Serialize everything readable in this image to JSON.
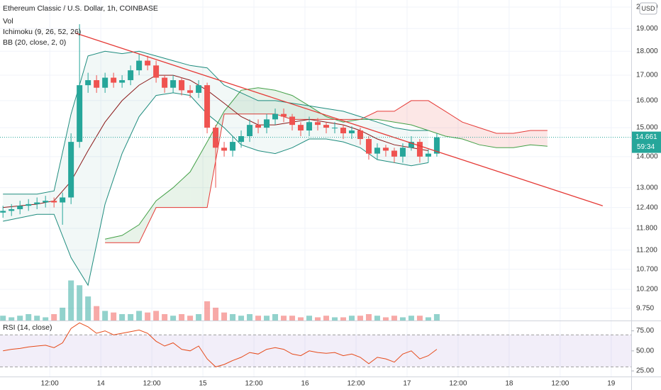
{
  "chart_data": {
    "type": "candlestick",
    "title": "Ethereum Classic / U.S. Dollar, 1h, COINBASE",
    "indicator_labels": [
      "Vol",
      "Ichimoku (9, 26, 52, 26)",
      "BB (20, close, 2, 0)"
    ],
    "currency": "USD",
    "countdown": "59:34",
    "log_scale": true,
    "grid": true,
    "up_color": "#26a69a",
    "down_color": "#ef5350",
    "xlim": [
      0.3,
      148.7
    ],
    "xticks": [
      {
        "value": 12,
        "label": "12:00"
      },
      {
        "value": 24,
        "label": "14"
      },
      {
        "value": 36,
        "label": "12:00"
      },
      {
        "value": 48,
        "label": "15"
      },
      {
        "value": 60,
        "label": "12:00"
      },
      {
        "value": 72,
        "label": "16"
      },
      {
        "value": 84,
        "label": "12:00"
      },
      {
        "value": 96,
        "label": "17"
      },
      {
        "value": 108,
        "label": "12:00"
      },
      {
        "value": 120,
        "label": "18"
      },
      {
        "value": 132,
        "label": "12:00"
      },
      {
        "value": 144,
        "label": "19"
      }
    ],
    "ylim": [
      9.47,
      20.34
    ],
    "yticks": [
      {
        "value": 20,
        "label": "20.000"
      },
      {
        "value": 19,
        "label": "19.000"
      },
      {
        "value": 18,
        "label": "18.000"
      },
      {
        "value": 17,
        "label": "17.000"
      },
      {
        "value": 16,
        "label": "16.000"
      },
      {
        "value": 15,
        "label": "15.000"
      },
      {
        "value": 14,
        "label": "14.000"
      },
      {
        "value": 13,
        "label": "13.000"
      },
      {
        "value": 12.4,
        "label": "12.400"
      },
      {
        "value": 11.8,
        "label": "11.800"
      },
      {
        "value": 11.2,
        "label": "11.200"
      },
      {
        "value": 10.7,
        "label": "10.700"
      },
      {
        "value": 10.2,
        "label": "10.200"
      },
      {
        "value": 9.75,
        "label": "9.750"
      }
    ],
    "x": [
      1,
      3,
      5,
      7,
      9,
      11,
      13,
      15,
      17,
      19,
      21,
      23,
      25,
      27,
      29,
      31,
      33,
      35,
      37,
      39,
      41,
      43,
      45,
      47,
      49,
      51,
      53,
      55,
      57,
      59,
      61,
      63,
      65,
      67,
      69,
      71,
      73,
      75,
      77,
      79,
      81,
      83,
      85,
      87,
      89,
      91,
      93,
      95,
      97,
      99,
      101,
      103
    ],
    "open": [
      12.25,
      12.3,
      12.35,
      12.45,
      12.5,
      12.55,
      12.6,
      12.55,
      12.7,
      14.5,
      16.6,
      16.8,
      16.5,
      16.9,
      16.7,
      16.8,
      17.2,
      17.6,
      17.4,
      16.9,
      16.5,
      16.8,
      16.4,
      16.3,
      16.6,
      15.0,
      14.3,
      14.2,
      14.5,
      14.7,
      15.1,
      15.0,
      15.3,
      15.5,
      15.4,
      15.1,
      14.9,
      15.2,
      15.1,
      15.0,
      15.0,
      14.8,
      14.9,
      14.6,
      14.1,
      14.3,
      14.2,
      14.0,
      14.3,
      14.5,
      14.0,
      14.1
    ],
    "high": [
      12.45,
      12.5,
      12.6,
      12.65,
      12.7,
      12.75,
      12.7,
      12.85,
      14.8,
      19.2,
      17.1,
      17.0,
      17.1,
      17.1,
      17.0,
      17.4,
      17.9,
      17.8,
      17.6,
      17.0,
      17.0,
      16.9,
      16.6,
      16.8,
      16.7,
      15.1,
      14.5,
      14.7,
      14.9,
      15.3,
      15.3,
      15.5,
      15.7,
      15.7,
      15.5,
      15.2,
      15.4,
      15.35,
      15.2,
      15.2,
      15.1,
      15.05,
      15.0,
      14.7,
      14.45,
      14.4,
      14.3,
      14.45,
      14.7,
      14.6,
      14.25,
      14.8
    ],
    "low": [
      12.1,
      12.15,
      12.2,
      12.3,
      12.35,
      12.4,
      12.4,
      11.9,
      12.5,
      14.3,
      16.3,
      16.3,
      16.3,
      16.5,
      16.5,
      16.6,
      17.0,
      17.2,
      16.7,
      16.3,
      16.3,
      16.2,
      16.1,
      16.1,
      14.8,
      13.0,
      14.0,
      14.0,
      14.3,
      14.5,
      14.8,
      14.8,
      15.1,
      15.2,
      14.9,
      14.7,
      14.7,
      14.9,
      14.8,
      14.8,
      14.6,
      14.6,
      14.4,
      13.9,
      13.9,
      14.0,
      13.8,
      13.8,
      14.2,
      13.8,
      13.8,
      14.0
    ],
    "close": [
      12.3,
      12.35,
      12.45,
      12.5,
      12.55,
      12.6,
      12.55,
      12.7,
      14.5,
      16.6,
      16.8,
      16.5,
      16.9,
      16.7,
      16.8,
      17.2,
      17.6,
      17.4,
      16.9,
      16.5,
      16.8,
      16.4,
      16.3,
      16.6,
      15.0,
      14.3,
      14.2,
      14.5,
      14.7,
      15.1,
      15.0,
      15.3,
      15.5,
      15.4,
      15.1,
      14.9,
      15.2,
      15.1,
      15.0,
      15.0,
      14.8,
      14.9,
      14.6,
      14.1,
      14.3,
      14.2,
      14.0,
      14.3,
      14.5,
      14.0,
      14.1,
      14.661
    ],
    "volume": [
      3,
      2,
      3,
      4,
      3,
      2,
      4,
      8,
      25,
      22,
      15,
      9,
      6,
      5,
      4,
      4,
      6,
      5,
      6,
      4,
      3,
      4,
      3,
      4,
      12,
      8,
      5,
      4,
      3,
      4,
      3,
      3,
      4,
      3,
      3,
      2,
      3,
      2,
      3,
      2,
      2,
      3,
      3,
      4,
      3,
      2,
      3,
      2,
      3,
      3,
      2,
      4
    ],
    "volume_ylim": [
      0,
      200
    ],
    "bollinger": {
      "color": "#1e8c7e",
      "basis_color": "#8b1a1a",
      "x": [
        1,
        5,
        9,
        13,
        17,
        21,
        25,
        29,
        33,
        37,
        41,
        45,
        49,
        53,
        57,
        61,
        65,
        69,
        73,
        77,
        81,
        85,
        89,
        93,
        97,
        101
      ],
      "upper": [
        12.8,
        12.8,
        12.8,
        12.9,
        15.5,
        17.8,
        18.0,
        17.9,
        18.0,
        17.8,
        17.6,
        17.4,
        17.3,
        16.6,
        16.3,
        16.0,
        16.0,
        15.9,
        15.8,
        15.7,
        15.6,
        15.4,
        15.2,
        15.0,
        14.9,
        14.9
      ],
      "basis": [
        12.4,
        12.45,
        12.5,
        12.6,
        13.2,
        14.2,
        15.2,
        16.0,
        16.6,
        17.0,
        17.0,
        16.8,
        16.4,
        15.9,
        15.4,
        15.1,
        15.1,
        15.2,
        15.3,
        15.2,
        15.1,
        14.9,
        14.6,
        14.4,
        14.3,
        14.2
      ],
      "lower": [
        12.0,
        12.1,
        12.2,
        12.2,
        11.0,
        10.3,
        12.5,
        14.1,
        15.4,
        16.2,
        16.3,
        16.2,
        15.5,
        15.0,
        14.4,
        14.2,
        14.1,
        14.3,
        14.6,
        14.6,
        14.5,
        14.3,
        13.9,
        13.8,
        13.7,
        13.8
      ]
    },
    "ichimoku": {
      "span_a_color": "#43a047",
      "span_b_color": "#e53935",
      "x": [
        25,
        29,
        33,
        37,
        41,
        45,
        49,
        53,
        57,
        61,
        65,
        69,
        73,
        77,
        81,
        85,
        89,
        93,
        97,
        101,
        105,
        109,
        113,
        117,
        121,
        125,
        129
      ],
      "span_a": [
        11.5,
        11.6,
        11.9,
        12.6,
        13.0,
        13.5,
        14.5,
        15.6,
        16.4,
        16.5,
        16.4,
        16.2,
        15.8,
        15.4,
        15.2,
        15.3,
        15.3,
        15.2,
        15.1,
        14.9,
        14.7,
        14.6,
        14.4,
        14.3,
        14.3,
        14.4,
        14.35
      ],
      "span_b": [
        11.4,
        11.4,
        11.4,
        12.4,
        12.4,
        12.4,
        12.4,
        15.5,
        15.5,
        15.5,
        15.5,
        15.3,
        15.3,
        15.3,
        15.3,
        15.3,
        15.6,
        15.6,
        16.0,
        16.0,
        15.6,
        15.2,
        15.0,
        14.8,
        14.8,
        14.9,
        14.9
      ]
    },
    "trendline": {
      "color": "#e53935",
      "x": [
        18,
        142
      ],
      "values": [
        18.8,
        12.45
      ]
    },
    "rsi": {
      "title": "RSI (14, close)",
      "color": "#e64a19",
      "ylim": [
        18,
        87
      ],
      "band": [
        30,
        70
      ],
      "yticks": [
        {
          "value": 25,
          "label": "25.00"
        },
        {
          "value": 50,
          "label": "50.00"
        },
        {
          "value": 75,
          "label": "75.00"
        }
      ],
      "values": [
        50,
        52,
        53,
        55,
        56,
        57,
        54,
        60,
        78,
        85,
        80,
        72,
        75,
        70,
        72,
        74,
        76,
        72,
        62,
        56,
        60,
        52,
        50,
        56,
        40,
        30,
        33,
        38,
        42,
        48,
        46,
        52,
        54,
        52,
        46,
        44,
        50,
        48,
        47,
        48,
        44,
        46,
        42,
        34,
        42,
        40,
        36,
        46,
        50,
        40,
        44,
        52
      ]
    }
  }
}
